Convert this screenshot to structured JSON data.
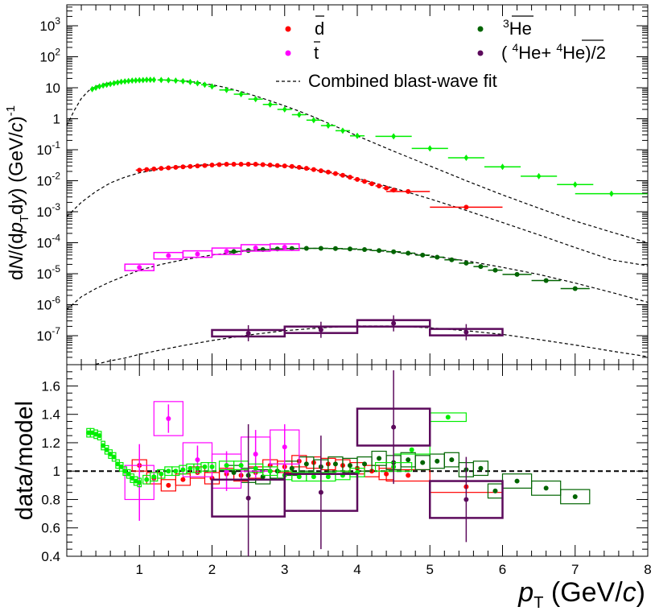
{
  "chart_data": [
    {
      "type": "scatter",
      "panel": "top",
      "y_scale": "log",
      "ylabel": "dN/(dp_T dy) (GeV/c)^-1",
      "xlim": [
        0,
        8
      ],
      "ylim": [
        1e-08,
        5000
      ],
      "y_tick_labels": [
        "10^-7",
        "10^-6",
        "10^-5",
        "10^-4",
        "10^-3",
        "10^-2",
        "10^-1",
        "1",
        "10",
        "10^2",
        "10^3"
      ],
      "legend": {
        "dbar": "d̄",
        "tbar": "t̄",
        "he3bar": "³He̅",
        "he4": "( ⁴He+ ⁴He̅)/2",
        "fit": "Combined blast-wave fit"
      },
      "series": [
        {
          "key": "deuteron",
          "name": "d̄",
          "color": "#ff0000",
          "x": [
            1.0,
            1.1,
            1.2,
            1.3,
            1.4,
            1.5,
            1.6,
            1.7,
            1.8,
            1.9,
            2.0,
            2.1,
            2.2,
            2.3,
            2.4,
            2.5,
            2.6,
            2.7,
            2.8,
            2.9,
            3.0,
            3.1,
            3.2,
            3.3,
            3.4,
            3.5,
            3.6,
            3.7,
            3.8,
            3.9,
            4.0,
            4.1,
            4.2,
            4.3,
            4.4,
            4.5,
            4.7,
            5.5
          ],
          "y": [
            0.022,
            0.023,
            0.024,
            0.025,
            0.026,
            0.027,
            0.028,
            0.029,
            0.03,
            0.031,
            0.032,
            0.033,
            0.034,
            0.034,
            0.034,
            0.034,
            0.034,
            0.033,
            0.032,
            0.031,
            0.03,
            0.029,
            0.027,
            0.025,
            0.023,
            0.021,
            0.019,
            0.017,
            0.015,
            0.013,
            0.011,
            0.0095,
            0.008,
            0.0068,
            0.0058,
            0.005,
            0.0045,
            0.0014
          ],
          "xerr": [
            0.05,
            0.05,
            0.05,
            0.05,
            0.05,
            0.05,
            0.05,
            0.05,
            0.05,
            0.05,
            0.05,
            0.05,
            0.05,
            0.05,
            0.05,
            0.05,
            0.05,
            0.05,
            0.05,
            0.05,
            0.05,
            0.05,
            0.05,
            0.05,
            0.05,
            0.05,
            0.05,
            0.05,
            0.05,
            0.05,
            0.05,
            0.05,
            0.05,
            0.05,
            0.05,
            0.05,
            0.3,
            0.5
          ]
        },
        {
          "key": "he3",
          "name": "³He̅",
          "color": "#006400",
          "x": [
            2.3,
            2.5,
            2.7,
            2.9,
            3.1,
            3.3,
            3.5,
            3.7,
            3.9,
            4.1,
            4.3,
            4.5,
            4.7,
            4.9,
            5.1,
            5.3,
            5.5,
            5.7,
            5.9,
            6.2,
            6.6,
            7.0
          ],
          "y": [
            5.2e-05,
            5.6e-05,
            6e-05,
            6.3e-05,
            6.5e-05,
            6.6e-05,
            6.6e-05,
            6.5e-05,
            6.3e-05,
            6e-05,
            5.6e-05,
            5.1e-05,
            4.6e-05,
            4e-05,
            3.4e-05,
            2.8e-05,
            2.2e-05,
            1.7e-05,
            1.3e-05,
            9.5e-06,
            6e-06,
            3.3e-06
          ],
          "xerr": [
            0.1,
            0.1,
            0.1,
            0.1,
            0.1,
            0.1,
            0.1,
            0.1,
            0.1,
            0.1,
            0.1,
            0.1,
            0.1,
            0.1,
            0.1,
            0.1,
            0.1,
            0.1,
            0.1,
            0.2,
            0.2,
            0.2
          ]
        },
        {
          "key": "triton",
          "name": "t̄",
          "color": "#ff00ff",
          "x": [
            1.0,
            1.4,
            1.8,
            2.2,
            2.6,
            3.0
          ],
          "y": [
            1.6e-05,
            3.8e-05,
            4.3e-05,
            5.3e-05,
            6.8e-05,
            7.2e-05
          ],
          "xerr": [
            0.2,
            0.2,
            0.2,
            0.2,
            0.2,
            0.2
          ]
        },
        {
          "key": "alpha",
          "name": "( ⁴He+ ⁴He̅)/2",
          "color": "#5c0a5c",
          "x": [
            2.5,
            3.5,
            4.5,
            5.5
          ],
          "y": [
            1.2e-07,
            1.55e-07,
            2.5e-07,
            1.3e-07
          ],
          "xerr": [
            0.5,
            0.5,
            0.5,
            0.5
          ]
        },
        {
          "key": "proton",
          "name": "",
          "color": "#00ee00",
          "x": [
            0.35,
            0.4,
            0.45,
            0.5,
            0.55,
            0.6,
            0.65,
            0.7,
            0.75,
            0.8,
            0.85,
            0.9,
            0.95,
            1.0,
            1.05,
            1.1,
            1.15,
            1.2,
            1.3,
            1.4,
            1.5,
            1.6,
            1.7,
            1.8,
            1.9,
            2.0,
            2.2,
            2.4,
            2.6,
            2.8,
            3.0,
            3.2,
            3.4,
            3.6,
            3.8,
            4.0,
            4.5,
            5.0,
            5.5,
            6.0,
            6.5,
            7.0,
            7.5
          ],
          "y": [
            9.0,
            10.0,
            11.0,
            11.8,
            12.5,
            13.2,
            14.0,
            14.8,
            15.5,
            16.0,
            16.5,
            17.0,
            17.3,
            17.5,
            17.7,
            18.0,
            18.0,
            18.0,
            17.8,
            17.5,
            17.0,
            16.3,
            15.3,
            14.0,
            12.5,
            11.0,
            8.5,
            6.2,
            4.3,
            2.9,
            2.0,
            1.35,
            0.9,
            0.6,
            0.41,
            0.28,
            0.27,
            0.11,
            0.055,
            0.028,
            0.014,
            0.0075,
            0.0038
          ],
          "xerr": [
            0.025,
            0.025,
            0.025,
            0.025,
            0.025,
            0.025,
            0.025,
            0.025,
            0.025,
            0.025,
            0.025,
            0.025,
            0.025,
            0.025,
            0.025,
            0.025,
            0.025,
            0.025,
            0.05,
            0.05,
            0.05,
            0.05,
            0.05,
            0.05,
            0.05,
            0.05,
            0.1,
            0.1,
            0.1,
            0.1,
            0.1,
            0.1,
            0.1,
            0.1,
            0.1,
            0.1,
            0.25,
            0.25,
            0.25,
            0.25,
            0.25,
            0.25,
            0.5
          ]
        }
      ],
      "fit_curves": [
        {
          "key": "proton_fit",
          "x": [
            0.0,
            0.1,
            0.2,
            0.3,
            0.4,
            0.5,
            0.6,
            0.8,
            1.0,
            1.2,
            1.4,
            1.6,
            1.8,
            2.0,
            2.2,
            2.4,
            2.6,
            2.8,
            3.0,
            3.2,
            3.4,
            3.6,
            3.8,
            4.0,
            4.5,
            5.0,
            5.5,
            6.0,
            6.5,
            7.0,
            7.5,
            8.0
          ],
          "y": [
            0.6,
            1.8,
            4.5,
            8.0,
            11.0,
            13.0,
            14.5,
            16.5,
            17.5,
            18.0,
            17.8,
            16.8,
            15.0,
            12.5,
            10.0,
            7.5,
            5.4,
            3.8,
            2.6,
            1.75,
            1.15,
            0.72,
            0.45,
            0.28,
            0.09,
            0.03,
            0.01,
            0.0035,
            0.0013,
            0.0005,
            0.00022,
            0.0001
          ]
        },
        {
          "key": "deuteron_fit",
          "x": [
            0.0,
            0.2,
            0.4,
            0.6,
            0.8,
            1.0,
            1.2,
            1.5,
            2.0,
            2.5,
            3.0,
            3.5,
            4.0,
            4.5,
            5.0,
            5.5,
            6.0,
            6.5,
            7.0,
            7.5,
            8.0
          ],
          "y": [
            0.0007,
            0.002,
            0.0045,
            0.0085,
            0.013,
            0.018,
            0.022,
            0.028,
            0.034,
            0.034,
            0.029,
            0.021,
            0.012,
            0.0058,
            0.0026,
            0.0011,
            0.00045,
            0.00018,
            7e-05,
            2.8e-05,
            1.8e-05
          ]
        },
        {
          "key": "he3_fit",
          "x": [
            0.0,
            0.2,
            0.4,
            0.6,
            0.8,
            1.0,
            1.3,
            1.6,
            2.0,
            2.5,
            3.0,
            3.5,
            4.0,
            4.5,
            5.0,
            5.5,
            6.0,
            6.5,
            7.0,
            7.5,
            8.0
          ],
          "y": [
            7e-07,
            1.8e-06,
            3.3e-06,
            5.5e-06,
            8.5e-06,
            1.3e-05,
            2e-05,
            2.8e-05,
            4e-05,
            5.5e-05,
            6.4e-05,
            6.6e-05,
            6.1e-05,
            5.1e-05,
            3.8e-05,
            2.6e-05,
            1.6e-05,
            9.5e-06,
            5e-06,
            2.5e-06,
            1.2e-06
          ]
        },
        {
          "key": "alpha_fit",
          "x": [
            0.4,
            0.6,
            0.8,
            1.0,
            1.3,
            1.6,
            2.0,
            2.5,
            3.0,
            3.5,
            4.0,
            4.5,
            5.0,
            5.5,
            6.0,
            6.5,
            7.0,
            7.5,
            8.0
          ],
          "y": [
            1.2e-08,
            1.55e-08,
            1.9e-08,
            2.5e-08,
            3.5e-08,
            4.8e-08,
            7e-08,
            1.05e-07,
            1.45e-07,
            1.8e-07,
            2.05e-07,
            2.05e-07,
            1.8e-07,
            1.45e-07,
            1.1e-07,
            7.5e-08,
            5e-08,
            3.2e-08,
            2.1e-08
          ]
        }
      ]
    },
    {
      "type": "scatter",
      "panel": "bottom",
      "ylabel": "data/model",
      "xlabel": "p_T (GeV/c)",
      "xlabel_main": "p",
      "xlabel_sub": "T",
      "xlabel_unit": " (GeV/c)",
      "xlim": [
        0,
        8
      ],
      "ylim": [
        0.4,
        1.75
      ],
      "x_ticks": [
        1,
        2,
        3,
        4,
        5,
        6,
        7,
        8
      ],
      "x_tick_labels": [
        "1",
        "2",
        "3",
        "4",
        "5",
        "6",
        "7",
        "8"
      ],
      "y_ticks": [
        0.4,
        0.6,
        0.8,
        1.0,
        1.2,
        1.4,
        1.6
      ],
      "y_tick_labels": [
        "0.4",
        "0.6",
        "0.8",
        "1",
        "1.2",
        "1.4",
        "1.6"
      ],
      "reference_line": 1.0,
      "series": [
        {
          "key": "proton",
          "color": "#00ee00",
          "x": [
            0.3,
            0.35,
            0.4,
            0.45,
            0.5,
            0.55,
            0.6,
            0.65,
            0.7,
            0.75,
            0.8,
            0.85,
            0.9,
            0.95,
            1.0,
            1.1,
            1.2,
            1.3,
            1.4,
            1.5,
            1.6,
            1.7,
            1.8,
            1.9,
            2.0,
            2.2,
            2.4,
            2.6,
            2.8,
            3.0,
            3.2,
            3.4,
            3.6,
            3.8,
            4.0,
            4.5,
            4.75,
            5.25
          ],
          "y": [
            1.27,
            1.27,
            1.26,
            1.25,
            1.18,
            1.15,
            1.12,
            1.1,
            1.05,
            1.03,
            1.0,
            0.98,
            0.95,
            0.93,
            0.92,
            0.94,
            0.96,
            0.98,
            1.0,
            1.0,
            1.01,
            1.02,
            1.02,
            1.03,
            1.03,
            1.04,
            1.04,
            1.02,
            1.0,
            0.97,
            0.96,
            0.96,
            0.96,
            0.97,
            0.99,
            1.03,
            1.15,
            1.38
          ],
          "xerr": [
            0.025,
            0.025,
            0.025,
            0.025,
            0.025,
            0.025,
            0.025,
            0.025,
            0.025,
            0.025,
            0.025,
            0.025,
            0.025,
            0.025,
            0.025,
            0.05,
            0.05,
            0.05,
            0.05,
            0.05,
            0.05,
            0.05,
            0.05,
            0.05,
            0.05,
            0.1,
            0.1,
            0.1,
            0.1,
            0.1,
            0.1,
            0.1,
            0.1,
            0.1,
            0.1,
            0.25,
            0.25,
            0.25
          ],
          "syst": 0.03
        },
        {
          "key": "deuteron",
          "color": "#ff0000",
          "x": [
            1.0,
            1.2,
            1.4,
            1.6,
            1.8,
            2.0,
            2.2,
            2.4,
            2.6,
            2.8,
            3.0,
            3.2,
            3.4,
            3.6,
            3.8,
            4.0,
            4.2,
            4.4,
            4.7,
            5.5
          ],
          "y": [
            1.04,
            0.95,
            0.9,
            0.94,
            0.99,
            0.95,
            0.98,
            0.97,
            0.99,
            1.04,
            1.03,
            1.07,
            1.06,
            1.05,
            1.04,
            1.02,
            1.0,
            0.98,
            0.97,
            0.89
          ],
          "xerr": [
            0.1,
            0.1,
            0.1,
            0.1,
            0.1,
            0.1,
            0.1,
            0.1,
            0.1,
            0.1,
            0.1,
            0.1,
            0.1,
            0.1,
            0.1,
            0.1,
            0.1,
            0.1,
            0.3,
            0.5
          ],
          "syst": 0.04
        },
        {
          "key": "he3",
          "color": "#006400",
          "x": [
            2.3,
            2.5,
            2.7,
            2.9,
            3.1,
            3.3,
            3.5,
            3.7,
            3.9,
            4.1,
            4.3,
            4.5,
            4.7,
            4.9,
            5.1,
            5.3,
            5.5,
            5.7,
            5.9,
            6.2,
            6.6,
            7.0
          ],
          "y": [
            0.99,
            0.97,
            0.96,
            1.0,
            1.02,
            1.05,
            1.03,
            1.05,
            1.04,
            1.05,
            1.09,
            1.06,
            1.08,
            1.06,
            1.07,
            1.08,
            1.01,
            1.02,
            0.86,
            0.93,
            0.88,
            0.82
          ],
          "xerr": [
            0.1,
            0.1,
            0.1,
            0.1,
            0.1,
            0.1,
            0.1,
            0.1,
            0.1,
            0.1,
            0.1,
            0.1,
            0.1,
            0.1,
            0.1,
            0.1,
            0.1,
            0.1,
            0.1,
            0.2,
            0.2,
            0.2
          ],
          "syst": 0.05
        },
        {
          "key": "triton",
          "color": "#ff00ff",
          "x": [
            1.0,
            1.4,
            1.8,
            2.2,
            2.6,
            3.0
          ],
          "y": [
            0.92,
            1.37,
            1.08,
            1.0,
            1.12,
            1.17
          ],
          "xerr": [
            0.2,
            0.2,
            0.2,
            0.2,
            0.2,
            0.2
          ],
          "err": [
            0.27,
            0.1,
            0.1,
            0.14,
            0.17,
            0.16
          ],
          "syst": 0.12
        },
        {
          "key": "alpha",
          "color": "#5c0a5c",
          "x": [
            2.5,
            3.5,
            4.5,
            5.5
          ],
          "y": [
            0.81,
            0.85,
            1.31,
            0.8
          ],
          "xerr": [
            0.5,
            0.5,
            0.5,
            0.5
          ],
          "err": [
            0.52,
            0.4,
            0.4,
            0.3
          ],
          "syst": 0.13
        }
      ]
    }
  ]
}
